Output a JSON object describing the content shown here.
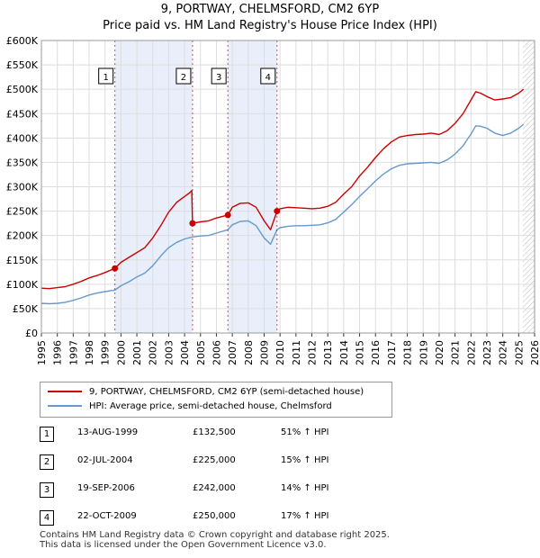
{
  "title": "9, PORTWAY, CHELMSFORD, CM2 6YP",
  "subtitle": "Price paid vs. HM Land Registry's House Price Index (HPI)",
  "chart_data": {
    "type": "line",
    "title": "9, PORTWAY, CHELMSFORD, CM2 6YP",
    "subtitle": "Price paid vs. HM Land Registry's House Price Index (HPI)",
    "xlim": [
      1995,
      2026
    ],
    "ylim": [
      0,
      600000
    ],
    "x_ticks": [
      "1995",
      "1996",
      "1997",
      "1998",
      "1999",
      "2000",
      "2001",
      "2002",
      "2003",
      "2004",
      "2005",
      "2006",
      "2007",
      "2008",
      "2009",
      "2010",
      "2011",
      "2012",
      "2013",
      "2014",
      "2015",
      "2016",
      "2017",
      "2018",
      "2019",
      "2020",
      "2021",
      "2022",
      "2023",
      "2024",
      "2025",
      "2026"
    ],
    "y_ticks": [
      {
        "value": 0,
        "label": "£0"
      },
      {
        "value": 50000,
        "label": "£50K"
      },
      {
        "value": 100000,
        "label": "£100K"
      },
      {
        "value": 150000,
        "label": "£150K"
      },
      {
        "value": 200000,
        "label": "£200K"
      },
      {
        "value": 250000,
        "label": "£250K"
      },
      {
        "value": 300000,
        "label": "£300K"
      },
      {
        "value": 350000,
        "label": "£350K"
      },
      {
        "value": 400000,
        "label": "£400K"
      },
      {
        "value": 450000,
        "label": "£450K"
      },
      {
        "value": 500000,
        "label": "£500K"
      },
      {
        "value": 550000,
        "label": "£550K"
      },
      {
        "value": 600000,
        "label": "£600K"
      }
    ],
    "grid": true,
    "shaded_spans": [
      [
        1999.62,
        2004.5
      ],
      [
        2006.72,
        2009.81
      ]
    ],
    "hatched_after": 2025.25,
    "series": [
      {
        "name": "9, PORTWAY, CHELMSFORD, CM2 6YP (semi-detached house)",
        "color": "#cc0000",
        "x": [
          1995.0,
          1995.5,
          1996.0,
          1996.5,
          1997.0,
          1997.5,
          1998.0,
          1998.5,
          1999.0,
          1999.62,
          2000.0,
          2000.5,
          2001.0,
          2001.5,
          2002.0,
          2002.5,
          2003.0,
          2003.5,
          2004.0,
          2004.3,
          2004.45,
          2004.5,
          2005.0,
          2005.5,
          2006.0,
          2006.72,
          2007.0,
          2007.5,
          2008.0,
          2008.5,
          2009.0,
          2009.4,
          2009.81,
          2010.0,
          2010.5,
          2011.0,
          2011.5,
          2012.0,
          2012.5,
          2013.0,
          2013.5,
          2014.0,
          2014.5,
          2015.0,
          2015.5,
          2016.0,
          2016.5,
          2017.0,
          2017.5,
          2018.0,
          2018.5,
          2019.0,
          2019.5,
          2020.0,
          2020.5,
          2021.0,
          2021.5,
          2022.0,
          2022.3,
          2022.6,
          2023.0,
          2023.5,
          2024.0,
          2024.5,
          2025.0,
          2025.3
        ],
        "y": [
          92000,
          91000,
          93000,
          95000,
          100000,
          106000,
          113000,
          118000,
          124000,
          132500,
          145000,
          155000,
          165000,
          175000,
          195000,
          220000,
          248000,
          268000,
          280000,
          287000,
          292000,
          225000,
          228000,
          230000,
          236000,
          242000,
          258000,
          266000,
          267000,
          258000,
          230000,
          212000,
          250000,
          255000,
          258000,
          257000,
          256000,
          255000,
          256000,
          260000,
          268000,
          285000,
          300000,
          322000,
          340000,
          360000,
          378000,
          392000,
          402000,
          405000,
          407000,
          408000,
          410000,
          407000,
          415000,
          430000,
          450000,
          478000,
          495000,
          492000,
          485000,
          478000,
          480000,
          483000,
          492000,
          500000
        ]
      },
      {
        "name": "HPI: Average price, semi-detached house, Chelmsford",
        "color": "#6699cc",
        "x": [
          1995.0,
          1995.5,
          1996.0,
          1996.5,
          1997.0,
          1997.5,
          1998.0,
          1998.5,
          1999.0,
          1999.62,
          2000.0,
          2000.5,
          2001.0,
          2001.5,
          2002.0,
          2002.5,
          2003.0,
          2003.5,
          2004.0,
          2004.5,
          2005.0,
          2005.5,
          2006.0,
          2006.72,
          2007.0,
          2007.5,
          2008.0,
          2008.5,
          2009.0,
          2009.4,
          2009.81,
          2010.0,
          2010.5,
          2011.0,
          2011.5,
          2012.0,
          2012.5,
          2013.0,
          2013.5,
          2014.0,
          2014.5,
          2015.0,
          2015.5,
          2016.0,
          2016.5,
          2017.0,
          2017.5,
          2018.0,
          2018.5,
          2019.0,
          2019.5,
          2020.0,
          2020.5,
          2021.0,
          2021.5,
          2022.0,
          2022.3,
          2022.6,
          2023.0,
          2023.5,
          2024.0,
          2024.5,
          2025.0,
          2025.3
        ],
        "y": [
          61000,
          60000,
          61000,
          63000,
          67000,
          72000,
          78000,
          82000,
          85000,
          88000,
          97000,
          105000,
          115000,
          123000,
          138000,
          158000,
          175000,
          186000,
          193000,
          197000,
          199000,
          200000,
          205000,
          212000,
          222000,
          229000,
          230000,
          220000,
          195000,
          182000,
          212000,
          216000,
          219000,
          220000,
          220000,
          221000,
          222000,
          226000,
          233000,
          248000,
          263000,
          280000,
          296000,
          312000,
          326000,
          337000,
          344000,
          347000,
          348000,
          349000,
          350000,
          348000,
          355000,
          367000,
          384000,
          408000,
          425000,
          424000,
          420000,
          410000,
          405000,
          410000,
          420000,
          428000
        ]
      }
    ],
    "sales": [
      {
        "label": "1",
        "date": "13-AUG-1999",
        "x": 1999.62,
        "price": 132500
      },
      {
        "label": "2",
        "date": "02-JUL-2004",
        "x": 2004.5,
        "price": 225000
      },
      {
        "label": "3",
        "date": "19-SEP-2006",
        "x": 2006.72,
        "price": 242000
      },
      {
        "label": "4",
        "date": "22-OCT-2009",
        "x": 2009.81,
        "price": 250000
      }
    ]
  },
  "legend": {
    "property": "9, PORTWAY, CHELMSFORD, CM2 6YP (semi-detached house)",
    "hpi": "HPI: Average price, semi-detached house, Chelmsford"
  },
  "sales_table": [
    {
      "num": "1",
      "date": "13-AUG-1999",
      "price": "£132,500",
      "hpi": "51% ↑ HPI"
    },
    {
      "num": "2",
      "date": "02-JUL-2004",
      "price": "£225,000",
      "hpi": "15% ↑ HPI"
    },
    {
      "num": "3",
      "date": "19-SEP-2006",
      "price": "£242,000",
      "hpi": "14% ↑ HPI"
    },
    {
      "num": "4",
      "date": "22-OCT-2009",
      "price": "£250,000",
      "hpi": "17% ↑ HPI"
    }
  ],
  "footer": {
    "line1": "Contains HM Land Registry data © Crown copyright and database right 2025.",
    "line2": "This data is licensed under the Open Government Licence v3.0."
  },
  "colors": {
    "property": "#cc0000",
    "hpi": "#6699cc",
    "shade": "#e8eefa",
    "grid": "#dddddd"
  }
}
